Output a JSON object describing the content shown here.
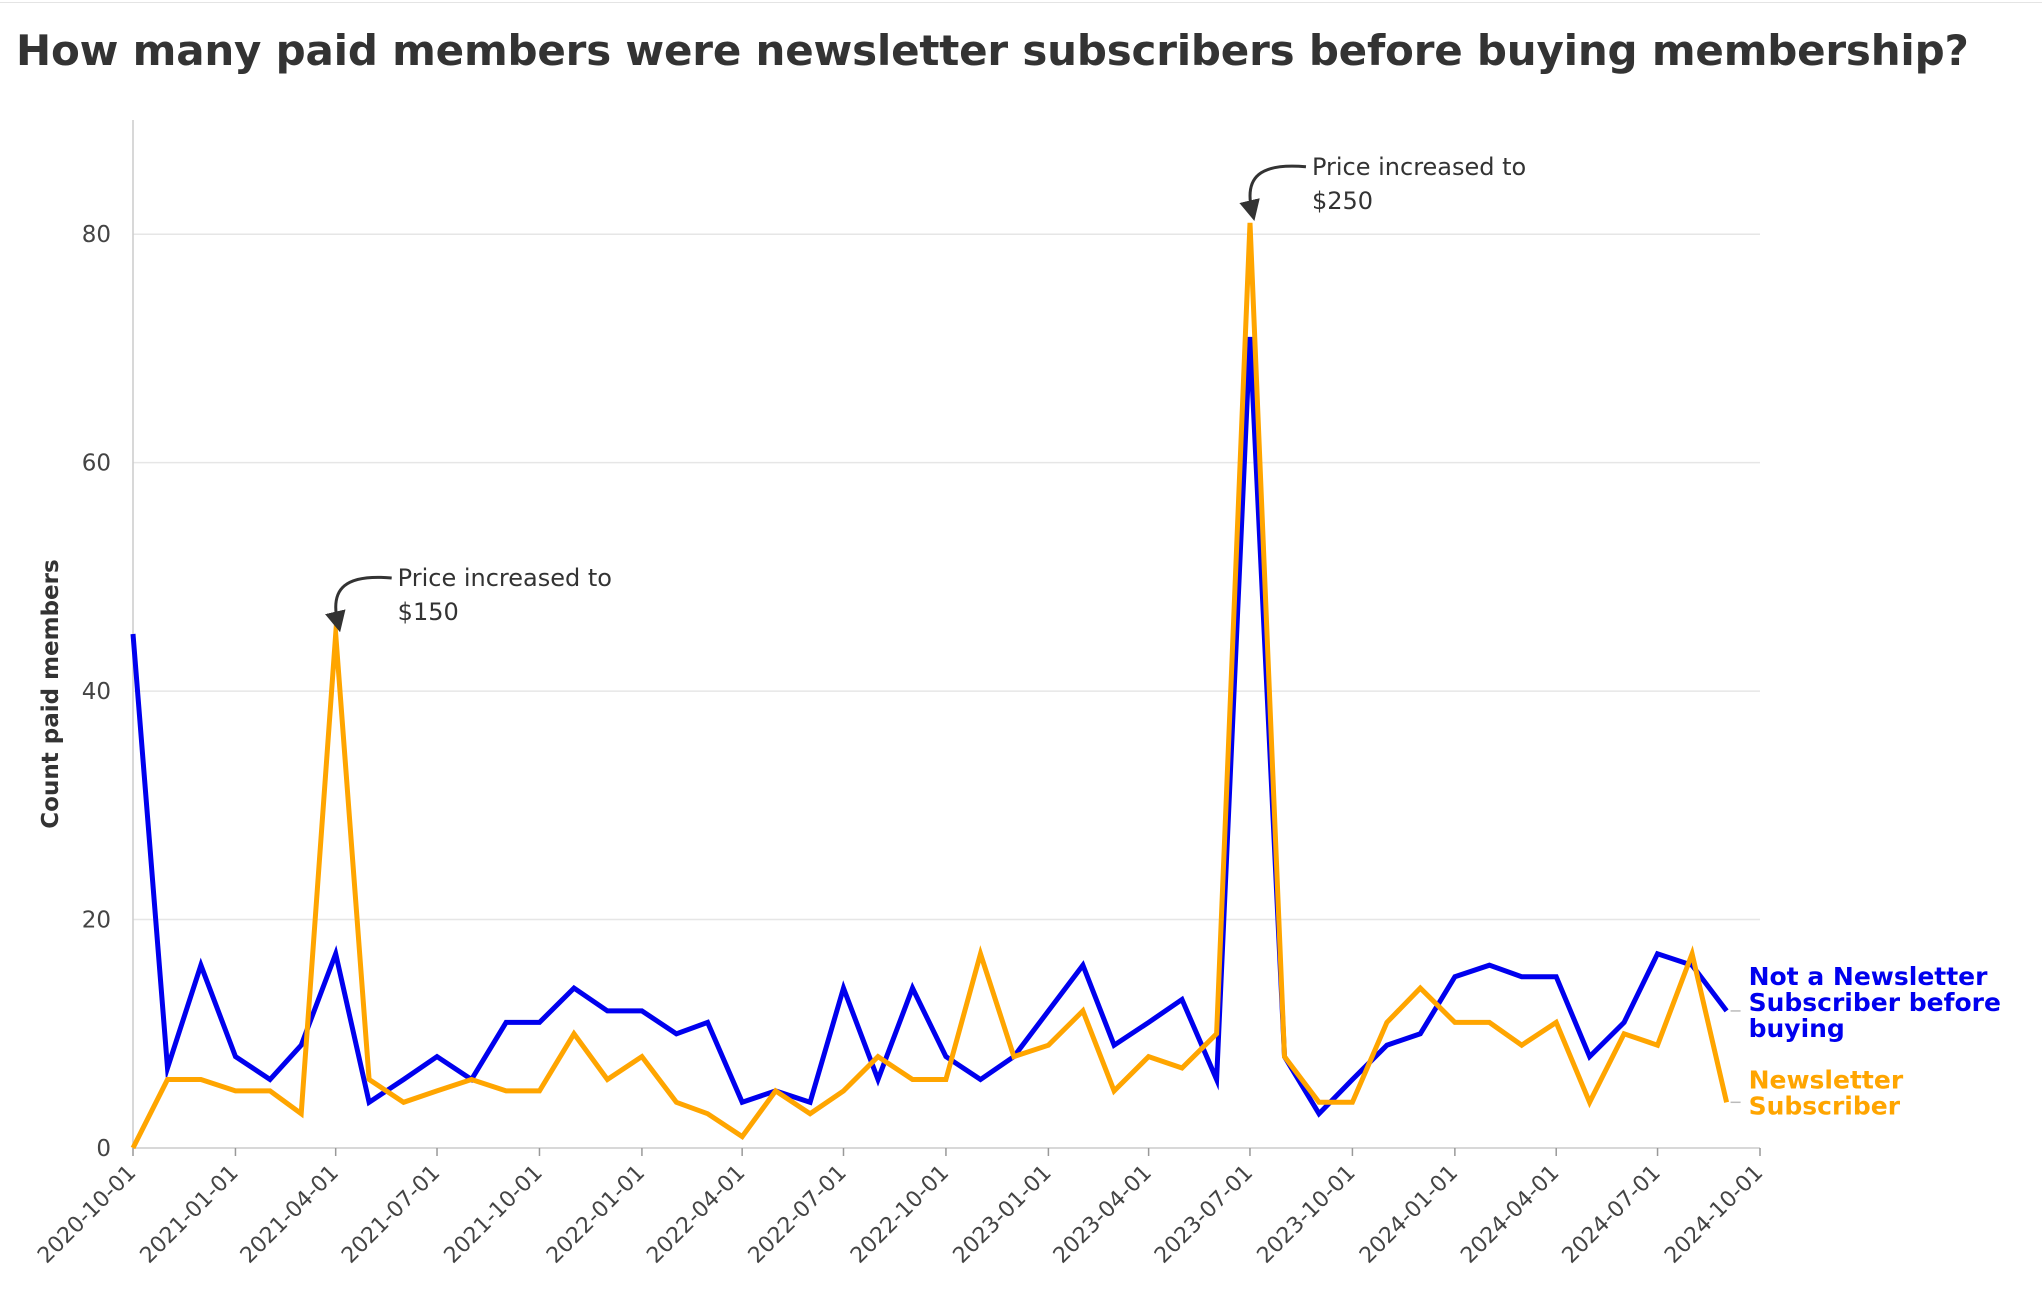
{
  "chart_data": {
    "type": "line",
    "title": "How many paid members were newsletter subscribers before buying membership?",
    "ylabel": "Count paid members",
    "xlabel": "",
    "ylim": [
      0,
      90
    ],
    "y_ticks": [
      0,
      20,
      40,
      60,
      80
    ],
    "grid": true,
    "x_tick_labels": [
      "2020-10-01",
      "2021-01-01",
      "2021-04-01",
      "2021-07-01",
      "2021-10-01",
      "2022-01-01",
      "2022-04-01",
      "2022-07-01",
      "2022-10-01",
      "2023-01-01",
      "2023-04-01",
      "2023-07-01",
      "2023-10-01",
      "2024-01-01",
      "2024-04-01",
      "2024-07-01",
      "2024-10-01"
    ],
    "x": [
      "2020-10-01",
      "2020-11-01",
      "2020-12-01",
      "2021-01-01",
      "2021-02-01",
      "2021-03-01",
      "2021-04-01",
      "2021-05-01",
      "2021-06-01",
      "2021-07-01",
      "2021-08-01",
      "2021-09-01",
      "2021-10-01",
      "2021-11-01",
      "2021-12-01",
      "2022-01-01",
      "2022-02-01",
      "2022-03-01",
      "2022-04-01",
      "2022-05-01",
      "2022-06-01",
      "2022-07-01",
      "2022-08-01",
      "2022-09-01",
      "2022-10-01",
      "2022-11-01",
      "2022-12-01",
      "2023-01-01",
      "2023-02-01",
      "2023-03-01",
      "2023-04-01",
      "2023-05-01",
      "2023-06-01",
      "2023-07-01",
      "2023-08-01",
      "2023-09-01",
      "2023-10-01",
      "2023-11-01",
      "2023-12-01",
      "2024-01-01",
      "2024-02-01",
      "2024-03-01",
      "2024-04-01",
      "2024-05-01",
      "2024-06-01",
      "2024-07-01",
      "2024-08-01",
      "2024-09-01"
    ],
    "series": [
      {
        "name": "Not a Newsletter Subscriber before buying",
        "color": "#0000ee",
        "values": [
          45,
          7,
          16,
          8,
          6,
          9,
          17,
          4,
          6,
          8,
          6,
          11,
          11,
          14,
          12,
          12,
          10,
          11,
          4,
          5,
          4,
          14,
          6,
          14,
          8,
          6,
          8,
          12,
          16,
          9,
          11,
          13,
          6,
          71,
          8,
          3,
          6,
          9,
          10,
          15,
          16,
          15,
          15,
          8,
          11,
          17,
          16,
          12
        ]
      },
      {
        "name": "Newsletter Subscriber",
        "color": "#ffa500",
        "values": [
          0,
          6,
          6,
          5,
          5,
          3,
          45,
          6,
          4,
          5,
          6,
          5,
          5,
          10,
          6,
          8,
          4,
          3,
          1,
          5,
          3,
          5,
          8,
          6,
          6,
          17,
          8,
          9,
          12,
          5,
          8,
          7,
          10,
          81,
          8,
          4,
          4,
          11,
          14,
          11,
          11,
          9,
          11,
          4,
          10,
          9,
          17,
          4
        ]
      }
    ],
    "legend": {
      "placement": "right, at line ends",
      "lines": [
        [
          "Not a Newsletter",
          "Subscriber before",
          "buying"
        ],
        [
          "Newsletter",
          "Subscriber"
        ]
      ]
    },
    "annotations": [
      {
        "x": "2021-04-01",
        "y": 45,
        "lines": [
          "Price increased to",
          "$150"
        ]
      },
      {
        "x": "2023-07-01",
        "y": 81,
        "lines": [
          "Price increased to",
          "$250"
        ]
      }
    ]
  }
}
